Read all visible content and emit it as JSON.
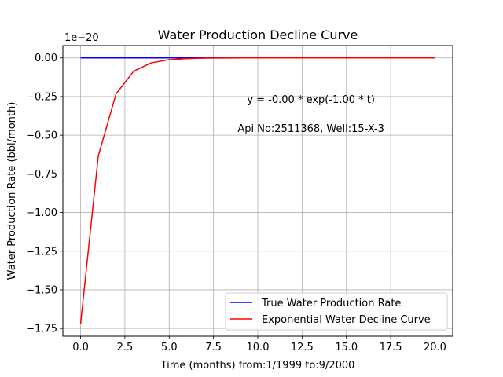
{
  "chart_data": {
    "type": "line",
    "title": "Water Production Decline Curve",
    "xlabel": "Time (months) from:1/1999 to:9/2000",
    "ylabel": "Water Production Rate (bbl/month)",
    "offset_label": "1e−20",
    "xlim": [
      -1.0,
      21.0
    ],
    "ylim": [
      -1.8,
      0.08
    ],
    "x_ticks": [
      {
        "value": 0.0,
        "label": "0.0"
      },
      {
        "value": 2.5,
        "label": "2.5"
      },
      {
        "value": 5.0,
        "label": "5.0"
      },
      {
        "value": 7.5,
        "label": "7.5"
      },
      {
        "value": 10.0,
        "label": "10.0"
      },
      {
        "value": 12.5,
        "label": "12.5"
      },
      {
        "value": 15.0,
        "label": "15.0"
      },
      {
        "value": 17.5,
        "label": "17.5"
      },
      {
        "value": 20.0,
        "label": "20.0"
      }
    ],
    "y_ticks": [
      {
        "value": 0.0,
        "label": "0.00"
      },
      {
        "value": -0.25,
        "label": "−0.25"
      },
      {
        "value": -0.5,
        "label": "−0.50"
      },
      {
        "value": -0.75,
        "label": "−0.75"
      },
      {
        "value": -1.0,
        "label": "−1.00"
      },
      {
        "value": -1.25,
        "label": "−1.25"
      },
      {
        "value": -1.5,
        "label": "−1.50"
      },
      {
        "value": -1.75,
        "label": "−1.75"
      }
    ],
    "grid": true,
    "legend_position": "lower-right",
    "series": [
      {
        "name": "True Water Production Rate",
        "color": "#0000ff",
        "x": [
          0,
          1,
          2,
          3,
          4,
          5,
          6,
          7,
          8,
          9,
          10,
          11,
          12,
          13,
          14,
          15,
          16,
          17,
          18,
          19,
          20
        ],
        "y": [
          0,
          0,
          0,
          0,
          0,
          0,
          0,
          0,
          0,
          0,
          0,
          0,
          0,
          0,
          0,
          0,
          0,
          0,
          0,
          0,
          0
        ]
      },
      {
        "name": "Exponential Water Decline Curve",
        "color": "#ff0000",
        "x": [
          0,
          1,
          2,
          3,
          4,
          5,
          6,
          7,
          8,
          9,
          10,
          11,
          12,
          13,
          14,
          15,
          16,
          17,
          18,
          19,
          20
        ],
        "y": [
          -1.72,
          -0.633,
          -0.233,
          -0.0856,
          -0.0315,
          -0.0116,
          -0.00426,
          -0.00157,
          -0.000577,
          -0.000212,
          -7.81e-05,
          -2.87e-05,
          -1.06e-05,
          -3.9e-06,
          -1.4e-06,
          -5e-07,
          -2e-07,
          -1e-07,
          0,
          0,
          0
        ]
      }
    ],
    "annotations": [
      {
        "text": "y = -0.00 * exp(-1.00 * t)",
        "x": 13.0,
        "y": -0.29
      },
      {
        "text": "Api No:2511368, Well:15-X-3",
        "x": 13.0,
        "y": -0.48
      }
    ]
  }
}
